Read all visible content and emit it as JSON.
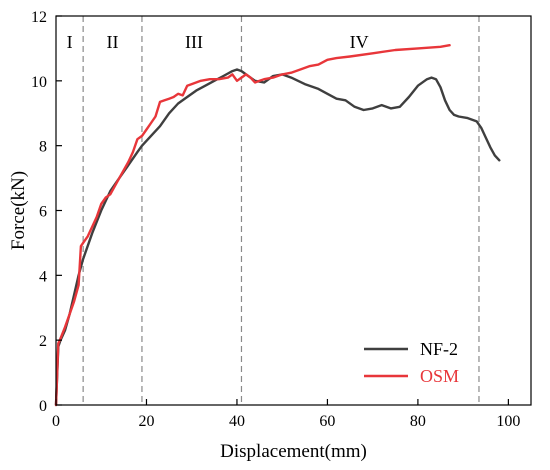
{
  "chart_data": {
    "type": "line",
    "title": "",
    "xlabel": "Displacement(mm)",
    "ylabel": "Force(kN)",
    "xlim": [
      0,
      105
    ],
    "ylim": [
      0,
      12
    ],
    "xticks": [
      0,
      20,
      40,
      60,
      80,
      100
    ],
    "yticks": [
      0,
      2,
      4,
      6,
      8,
      10,
      12
    ],
    "grid": false,
    "legend_position": "bottom-right",
    "regions": [
      {
        "label": "I",
        "x_center": 3
      },
      {
        "label": "II",
        "x_center": 12.5
      },
      {
        "label": "III",
        "x_center": 30.5
      },
      {
        "label": "IV",
        "x_center": 67
      }
    ],
    "dividers": [
      6,
      19,
      41,
      93.5
    ],
    "series": [
      {
        "name": "NF-2",
        "color": "#3f3f3f",
        "points": [
          [
            0,
            0
          ],
          [
            0.5,
            1.8
          ],
          [
            1,
            2.0
          ],
          [
            2,
            2.3
          ],
          [
            3,
            2.8
          ],
          [
            4,
            3.4
          ],
          [
            5,
            4.0
          ],
          [
            6,
            4.5
          ],
          [
            8,
            5.3
          ],
          [
            10,
            6.0
          ],
          [
            12,
            6.6
          ],
          [
            14,
            7.0
          ],
          [
            16,
            7.4
          ],
          [
            18,
            7.8
          ],
          [
            19,
            8.0
          ],
          [
            21,
            8.3
          ],
          [
            23,
            8.6
          ],
          [
            25,
            9.0
          ],
          [
            27,
            9.3
          ],
          [
            29,
            9.5
          ],
          [
            31,
            9.7
          ],
          [
            33,
            9.85
          ],
          [
            35,
            10.0
          ],
          [
            37,
            10.15
          ],
          [
            39,
            10.3
          ],
          [
            40,
            10.35
          ],
          [
            41,
            10.3
          ],
          [
            42,
            10.2
          ],
          [
            44,
            10.0
          ],
          [
            46,
            9.95
          ],
          [
            48,
            10.15
          ],
          [
            50,
            10.2
          ],
          [
            52,
            10.1
          ],
          [
            55,
            9.9
          ],
          [
            58,
            9.75
          ],
          [
            60,
            9.6
          ],
          [
            62,
            9.45
          ],
          [
            64,
            9.4
          ],
          [
            66,
            9.2
          ],
          [
            68,
            9.1
          ],
          [
            70,
            9.15
          ],
          [
            72,
            9.25
          ],
          [
            74,
            9.15
          ],
          [
            76,
            9.2
          ],
          [
            78,
            9.5
          ],
          [
            80,
            9.85
          ],
          [
            82,
            10.05
          ],
          [
            83,
            10.1
          ],
          [
            84,
            10.05
          ],
          [
            85,
            9.8
          ],
          [
            86,
            9.4
          ],
          [
            87,
            9.1
          ],
          [
            88,
            8.95
          ],
          [
            89,
            8.9
          ],
          [
            91,
            8.85
          ],
          [
            92,
            8.8
          ],
          [
            93,
            8.75
          ],
          [
            94,
            8.55
          ],
          [
            95,
            8.25
          ],
          [
            96,
            7.95
          ],
          [
            97,
            7.7
          ],
          [
            98,
            7.55
          ]
        ]
      },
      {
        "name": "OSM",
        "color": "#e8363a",
        "points": [
          [
            0,
            0
          ],
          [
            0.5,
            1.9
          ],
          [
            1,
            2.05
          ],
          [
            2,
            2.4
          ],
          [
            3,
            2.8
          ],
          [
            4,
            3.2
          ],
          [
            5,
            3.7
          ],
          [
            5.5,
            4.9
          ],
          [
            6,
            5.0
          ],
          [
            7,
            5.2
          ],
          [
            8,
            5.5
          ],
          [
            9,
            5.8
          ],
          [
            10,
            6.2
          ],
          [
            11,
            6.4
          ],
          [
            12,
            6.5
          ],
          [
            14,
            7.0
          ],
          [
            16,
            7.5
          ],
          [
            17,
            7.8
          ],
          [
            18,
            8.2
          ],
          [
            19,
            8.3
          ],
          [
            20,
            8.5
          ],
          [
            21,
            8.7
          ],
          [
            22,
            8.9
          ],
          [
            23,
            9.35
          ],
          [
            24,
            9.4
          ],
          [
            25,
            9.45
          ],
          [
            26,
            9.5
          ],
          [
            27,
            9.6
          ],
          [
            28,
            9.55
          ],
          [
            29,
            9.85
          ],
          [
            30,
            9.9
          ],
          [
            32,
            10.0
          ],
          [
            34,
            10.05
          ],
          [
            36,
            10.05
          ],
          [
            38,
            10.1
          ],
          [
            39,
            10.2
          ],
          [
            40,
            10.0
          ],
          [
            41,
            10.1
          ],
          [
            42,
            10.2
          ],
          [
            43,
            10.1
          ],
          [
            44,
            9.95
          ],
          [
            45,
            10.0
          ],
          [
            46,
            10.05
          ],
          [
            48,
            10.1
          ],
          [
            50,
            10.2
          ],
          [
            52,
            10.25
          ],
          [
            54,
            10.35
          ],
          [
            56,
            10.45
          ],
          [
            58,
            10.5
          ],
          [
            60,
            10.65
          ],
          [
            62,
            10.7
          ],
          [
            65,
            10.75
          ],
          [
            70,
            10.85
          ],
          [
            75,
            10.95
          ],
          [
            80,
            11.0
          ],
          [
            85,
            11.05
          ],
          [
            87,
            11.1
          ]
        ]
      }
    ]
  }
}
